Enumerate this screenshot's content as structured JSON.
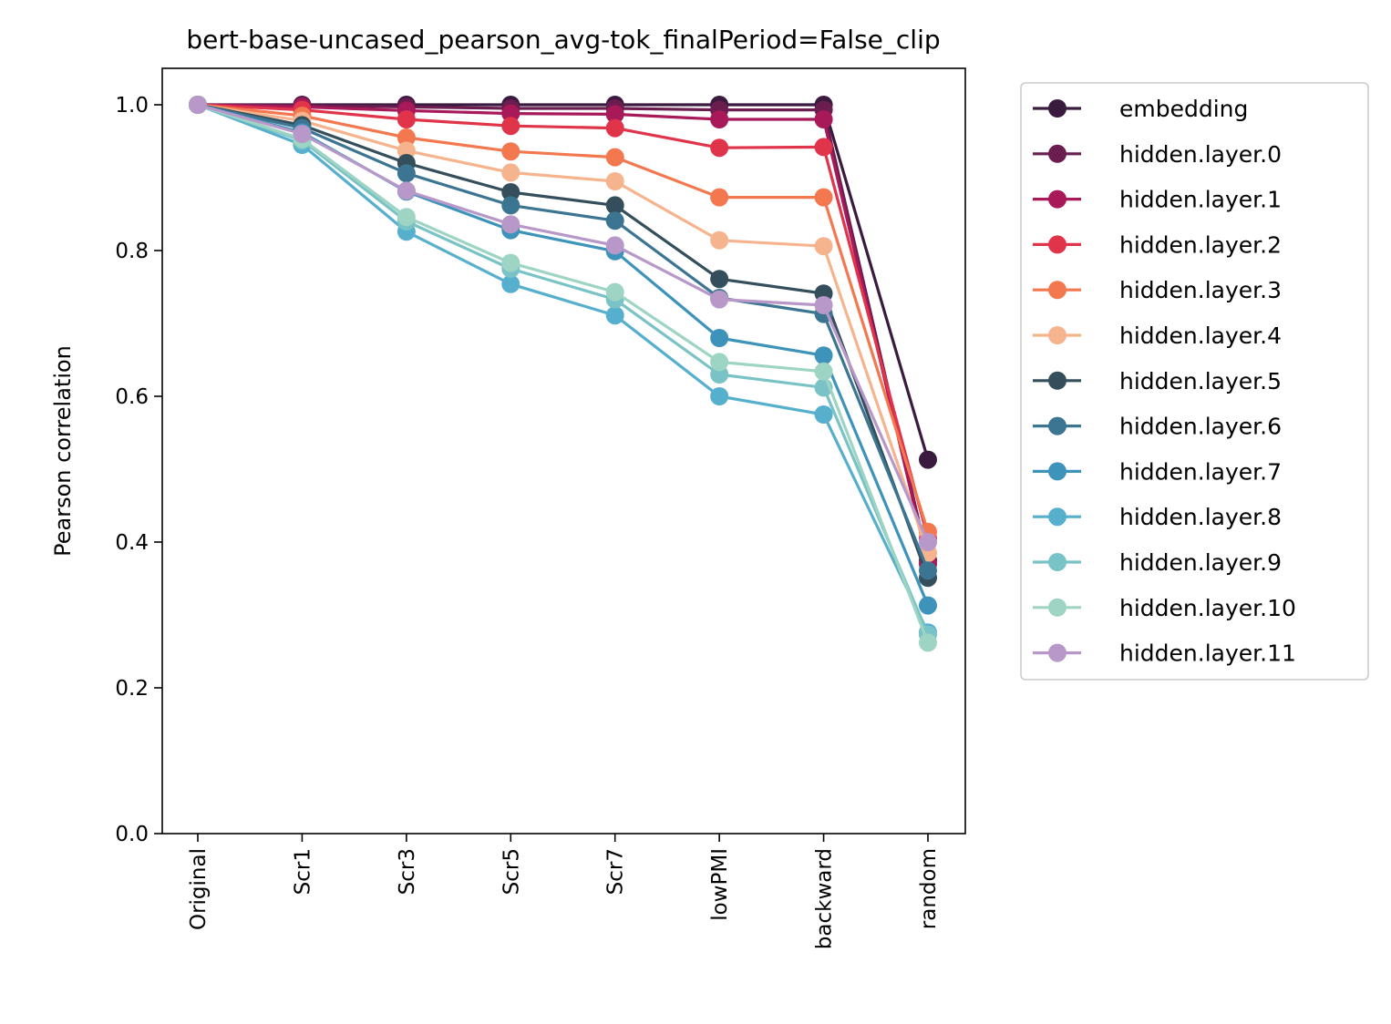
{
  "chart_data": {
    "type": "line",
    "title": "bert-base-uncased_pearson_avg-tok_finalPeriod=False_clip",
    "xlabel": "",
    "ylabel": "Pearson correlation",
    "categories": [
      "Original",
      "Scr1",
      "Scr3",
      "Scr5",
      "Scr7",
      "lowPMI",
      "backward",
      "random"
    ],
    "ylim": [
      0.0,
      1.05
    ],
    "yticks": [
      "0.0",
      "0.2",
      "0.4",
      "0.6",
      "0.8",
      "1.0"
    ],
    "grid": false,
    "legend_position": "outside-right",
    "series": [
      {
        "name": "embedding",
        "color": "#3b1a40",
        "values": [
          1.0,
          1.0,
          1.0,
          1.0,
          1.0,
          1.0,
          1.0,
          0.513
        ]
      },
      {
        "name": "hidden.layer.0",
        "color": "#6b1d50",
        "values": [
          1.0,
          0.999,
          0.997,
          0.995,
          0.995,
          0.993,
          0.993,
          0.375
        ]
      },
      {
        "name": "hidden.layer.1",
        "color": "#a8195a",
        "values": [
          1.0,
          0.997,
          0.992,
          0.988,
          0.987,
          0.98,
          0.98,
          0.37
        ]
      },
      {
        "name": "hidden.layer.2",
        "color": "#e0344a",
        "values": [
          1.0,
          0.993,
          0.98,
          0.971,
          0.968,
          0.941,
          0.942,
          0.405
        ]
      },
      {
        "name": "hidden.layer.3",
        "color": "#f3774f",
        "values": [
          1.0,
          0.985,
          0.955,
          0.936,
          0.928,
          0.873,
          0.873,
          0.414
        ]
      },
      {
        "name": "hidden.layer.4",
        "color": "#f6b48e",
        "values": [
          1.0,
          0.978,
          0.937,
          0.907,
          0.895,
          0.814,
          0.806,
          0.385
        ]
      },
      {
        "name": "hidden.layer.5",
        "color": "#344f5b",
        "values": [
          1.0,
          0.972,
          0.92,
          0.88,
          0.862,
          0.761,
          0.741,
          0.351
        ]
      },
      {
        "name": "hidden.layer.6",
        "color": "#3b7591",
        "values": [
          1.0,
          0.968,
          0.906,
          0.862,
          0.841,
          0.735,
          0.713,
          0.361
        ]
      },
      {
        "name": "hidden.layer.7",
        "color": "#3d93ba",
        "values": [
          1.0,
          0.962,
          0.881,
          0.828,
          0.799,
          0.68,
          0.656,
          0.313
        ]
      },
      {
        "name": "hidden.layer.8",
        "color": "#56afcd",
        "values": [
          1.0,
          0.945,
          0.826,
          0.754,
          0.711,
          0.6,
          0.575,
          0.276
        ]
      },
      {
        "name": "hidden.layer.9",
        "color": "#79c3c6",
        "values": [
          1.0,
          0.951,
          0.84,
          0.775,
          0.733,
          0.63,
          0.612,
          0.273
        ]
      },
      {
        "name": "hidden.layer.10",
        "color": "#9dd4c3",
        "values": [
          1.0,
          0.953,
          0.846,
          0.783,
          0.743,
          0.647,
          0.634,
          0.262
        ]
      },
      {
        "name": "hidden.layer.11",
        "color": "#b898c8",
        "values": [
          1.0,
          0.96,
          0.882,
          0.836,
          0.807,
          0.733,
          0.725,
          0.4
        ]
      }
    ]
  }
}
